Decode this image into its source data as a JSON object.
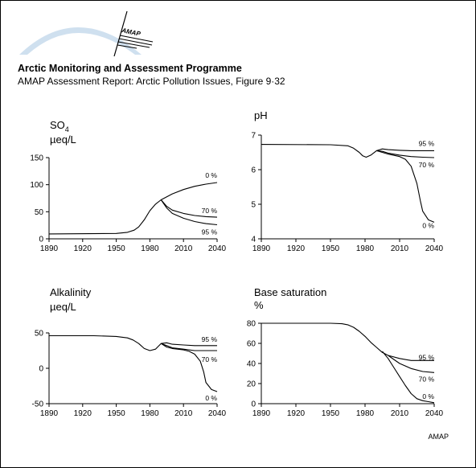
{
  "header": {
    "title": "Arctic Monitoring and Assessment Programme",
    "subtitle": "AMAP Assessment Report: Arctic Pollution Issues, Figure 9·32"
  },
  "logo": {
    "text": "AMAP"
  },
  "footer": {
    "credit": "AMAP"
  },
  "colors": {
    "line": "#000000",
    "logo_arc": "#cfe0ef"
  },
  "chart_data": [
    {
      "type": "line",
      "title": "SO4",
      "ylabel": "µeq/L",
      "xlim": [
        1890,
        2040
      ],
      "ylim": [
        0,
        150
      ],
      "xticks": [
        1890,
        1920,
        1950,
        1980,
        2010,
        2040
      ],
      "yticks": [
        0,
        50,
        100,
        150
      ],
      "series": [
        {
          "name": "0 %",
          "x": [
            1890,
            1950,
            1960,
            1966,
            1970,
            1975,
            1980,
            1985,
            1990,
            2000,
            2010,
            2020,
            2030,
            2040
          ],
          "y": [
            9,
            10,
            12,
            16,
            22,
            35,
            52,
            64,
            72,
            83,
            91,
            97,
            101,
            104
          ]
        },
        {
          "name": "70 %",
          "x": [
            1990,
            1995,
            2000,
            2010,
            2020,
            2030,
            2040
          ],
          "y": [
            72,
            60,
            53,
            47,
            43,
            41,
            40
          ]
        },
        {
          "name": "95 %",
          "x": [
            1990,
            1995,
            2000,
            2010,
            2020,
            2030,
            2040
          ],
          "y": [
            72,
            57,
            47,
            38,
            32,
            28,
            26
          ]
        }
      ]
    },
    {
      "type": "line",
      "title": "pH",
      "ylabel": "",
      "xlim": [
        1890,
        2040
      ],
      "ylim": [
        4,
        7
      ],
      "xticks": [
        1890,
        1920,
        1950,
        1980,
        2010,
        2040
      ],
      "yticks": [
        4,
        5,
        6,
        7
      ],
      "series": [
        {
          "name": "95 %",
          "x": [
            1890,
            1950,
            1965,
            1970,
            1975,
            1978,
            1981,
            1985,
            1990,
            1995,
            2000,
            2010,
            2020,
            2030,
            2040
          ],
          "y": [
            6.73,
            6.72,
            6.69,
            6.62,
            6.5,
            6.4,
            6.36,
            6.42,
            6.55,
            6.6,
            6.58,
            6.56,
            6.55,
            6.55,
            6.55
          ]
        },
        {
          "name": "70 %",
          "x": [
            1990,
            1995,
            2000,
            2010,
            2020,
            2030,
            2040
          ],
          "y": [
            6.55,
            6.53,
            6.48,
            6.42,
            6.38,
            6.36,
            6.35
          ]
        },
        {
          "name": "0 %",
          "x": [
            1990,
            1995,
            2000,
            2010,
            2015,
            2020,
            2025,
            2028,
            2030,
            2035,
            2040
          ],
          "y": [
            6.55,
            6.5,
            6.45,
            6.38,
            6.3,
            6.1,
            5.6,
            5.1,
            4.8,
            4.55,
            4.48
          ]
        }
      ]
    },
    {
      "type": "line",
      "title": "Alkalinity",
      "ylabel": "µeq/L",
      "xlim": [
        1890,
        2040
      ],
      "ylim": [
        -50,
        50
      ],
      "xticks": [
        1890,
        1920,
        1950,
        1980,
        2010,
        2040
      ],
      "yticks": [
        -50,
        0,
        50
      ],
      "series": [
        {
          "name": "95 %",
          "x": [
            1890,
            1930,
            1950,
            1960,
            1965,
            1970,
            1975,
            1980,
            1985,
            1990,
            1995,
            2000,
            2010,
            2020,
            2030,
            2040
          ],
          "y": [
            46,
            46,
            45,
            43,
            40,
            35,
            28,
            25,
            27,
            35,
            36,
            34,
            33,
            32,
            32,
            32
          ]
        },
        {
          "name": "70 %",
          "x": [
            1990,
            1995,
            2000,
            2010,
            2020,
            2030,
            2040
          ],
          "y": [
            35,
            32,
            29,
            27,
            25,
            25,
            25
          ]
        },
        {
          "name": "0 %",
          "x": [
            1990,
            1995,
            2000,
            2010,
            2015,
            2020,
            2025,
            2028,
            2030,
            2035,
            2040
          ],
          "y": [
            35,
            30,
            28,
            26,
            24,
            20,
            10,
            -5,
            -20,
            -30,
            -33
          ]
        }
      ]
    },
    {
      "type": "line",
      "title": "Base saturation",
      "ylabel": "%",
      "xlim": [
        1890,
        2040
      ],
      "ylim": [
        0,
        80
      ],
      "xticks": [
        1890,
        1920,
        1950,
        1980,
        2010,
        2040
      ],
      "yticks": [
        0,
        20,
        40,
        60,
        80
      ],
      "series": [
        {
          "name": "95 %",
          "x": [
            1890,
            1950,
            1960,
            1965,
            1970,
            1975,
            1980,
            1985,
            1990,
            1995,
            2000,
            2010,
            2020,
            2030,
            2040
          ],
          "y": [
            80,
            80,
            79.5,
            78.5,
            76,
            72,
            67,
            61,
            56,
            51,
            48,
            45,
            43,
            43,
            43
          ]
        },
        {
          "name": "70 %",
          "x": [
            2000,
            2005,
            2010,
            2020,
            2030,
            2040
          ],
          "y": [
            48,
            44,
            40,
            35,
            32,
            31
          ]
        },
        {
          "name": "0 %",
          "x": [
            1995,
            2000,
            2005,
            2010,
            2015,
            2020,
            2025,
            2030,
            2035,
            2040
          ],
          "y": [
            52,
            45,
            36,
            27,
            18,
            10,
            5,
            3,
            2,
            1
          ]
        }
      ]
    }
  ]
}
